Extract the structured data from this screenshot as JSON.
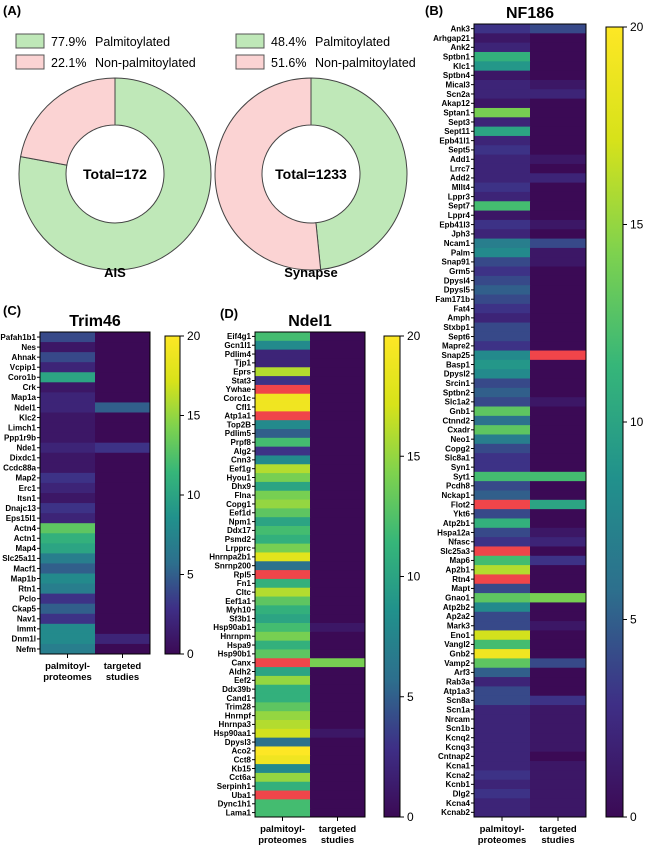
{
  "figure": {
    "panel_labels": {
      "A": "(A)",
      "B": "(B)",
      "C": "(C)",
      "D": "(D)"
    },
    "colors": {
      "palmitoylated": "#bfe8b8",
      "non_palmitoylated": "#fbd3d3",
      "border": "#555555"
    },
    "colorscale": [
      "#3b0a55",
      "#3e2f86",
      "#2d6f8d",
      "#21918c",
      "#36b679",
      "#7ed24e",
      "#d7e21a",
      "#fde725"
    ],
    "highlight_color": "#f0454a"
  },
  "chart_data": [
    {
      "type": "pie",
      "title": "AIS",
      "center_label": "Total=172",
      "categories": [
        "Palmitoylated",
        "Non-palmitoylated"
      ],
      "values": [
        77.9,
        22.1
      ],
      "legend": [
        {
          "pct": "77.9%",
          "label": "Palmitoylated"
        },
        {
          "pct": "22.1%",
          "label": "Non-palmitoylated"
        }
      ]
    },
    {
      "type": "pie",
      "title": "Synapse",
      "center_label": "Total=1233",
      "categories": [
        "Palmitoylated",
        "Non-palmitoylated"
      ],
      "values": [
        48.4,
        51.6
      ],
      "legend": [
        {
          "pct": "48.4%",
          "label": "Palmitoylated"
        },
        {
          "pct": "51.6%",
          "label": "Non-palmitoylated"
        }
      ]
    },
    {
      "type": "heatmap",
      "title": "NF186",
      "columns": [
        "palmitoyl-proteomes",
        "targeted studies"
      ],
      "column_labels": [
        [
          "palmitoyl-",
          "proteomes"
        ],
        [
          "targeted",
          "studies"
        ]
      ],
      "colorbar": {
        "min": 0,
        "max": 20,
        "ticks": [
          "0",
          "5",
          "10",
          "15",
          "20"
        ]
      },
      "rows": [
        "Ank3",
        "Arhgap21",
        "Ank2",
        "Sptbn1",
        "Klc1",
        "Sptbn4",
        "Mical3",
        "Scn2a",
        "Akap12",
        "Sptan1",
        "Sept3",
        "Sept11",
        "Epb41l1",
        "Sept5",
        "Add1",
        "Lrrc7",
        "Add2",
        "Mllt4",
        "Lppr3",
        "Sept7",
        "Lppr4",
        "Epb41l3",
        "Jph3",
        "Ncam1",
        "Palm",
        "Snap91",
        "Grm5",
        "Dpysl4",
        "Dpysl5",
        "Fam171b",
        "Fat4",
        "Amph",
        "Stxbp1",
        "Sept6",
        "Mapre2",
        "Snap25",
        "Basp1",
        "Dpysl2",
        "Srcin1",
        "Sptbn2",
        "Slc1a2",
        "Gnb1",
        "Ctnnd2",
        "Cxadr",
        "Neo1",
        "Copg2",
        "Slc8a1",
        "Syn1",
        "Syt1",
        "Pcdh8",
        "Nckap1",
        "Flot2",
        "Ykt6",
        "Atp2b1",
        "Hspa12a",
        "Nfasc",
        "Slc25a3",
        "Map6",
        "Ap2b1",
        "Rtn4",
        "Mapt",
        "Gnao1",
        "Atp2b2",
        "Ap2a2",
        "Mark3",
        "Eno1",
        "Vangl2",
        "Gnb2",
        "Vamp2",
        "Arf3",
        "Rab3a",
        "Atp1a3",
        "Scn8a",
        "Scn1a",
        "Nrcam",
        "Scn1b",
        "Kcnq2",
        "Kcnq3",
        "Cntnap2",
        "Kcna1",
        "Kcna2",
        "Kcnb1",
        "Dlg2",
        "Kcna4",
        "Kcnab2"
      ],
      "values": [
        [
          3,
          4
        ],
        [
          1,
          0
        ],
        [
          2,
          0
        ],
        [
          11,
          0
        ],
        [
          9,
          0
        ],
        [
          1,
          0
        ],
        [
          2,
          1
        ],
        [
          2,
          2
        ],
        [
          1,
          0
        ],
        [
          14,
          0
        ],
        [
          2,
          0
        ],
        [
          10,
          0
        ],
        [
          2,
          0
        ],
        [
          3,
          0
        ],
        [
          2,
          1
        ],
        [
          2,
          0
        ],
        [
          2,
          2
        ],
        [
          3,
          0
        ],
        [
          2,
          0
        ],
        [
          12,
          0
        ],
        [
          1,
          0
        ],
        [
          3,
          1
        ],
        [
          2,
          0
        ],
        [
          7,
          4
        ],
        [
          8,
          1
        ],
        [
          4,
          1
        ],
        [
          3,
          0
        ],
        [
          4,
          0
        ],
        [
          5,
          0
        ],
        [
          4,
          0
        ],
        [
          3,
          0
        ],
        [
          2,
          0
        ],
        [
          4,
          0
        ],
        [
          4,
          0
        ],
        [
          3,
          0
        ],
        [
          8,
          "max"
        ],
        [
          9,
          0
        ],
        [
          8,
          0
        ],
        [
          4,
          0
        ],
        [
          5,
          0
        ],
        [
          4,
          1
        ],
        [
          13,
          0
        ],
        [
          6,
          0
        ],
        [
          13,
          0
        ],
        [
          7,
          0
        ],
        [
          4,
          0
        ],
        [
          3,
          0
        ],
        [
          3,
          0
        ],
        [
          12,
          12
        ],
        [
          4,
          0
        ],
        [
          5,
          0
        ],
        [
          "max",
          10
        ],
        [
          4,
          0
        ],
        [
          11,
          0
        ],
        [
          4,
          1
        ],
        [
          3,
          2
        ],
        [
          "max",
          0
        ],
        [
          12,
          3
        ],
        [
          16,
          0
        ],
        [
          "max",
          0
        ],
        [
          4,
          0
        ],
        [
          13,
          14
        ],
        [
          8,
          0
        ],
        [
          4,
          0
        ],
        [
          4,
          1
        ],
        [
          17,
          0
        ],
        [
          12,
          0
        ],
        [
          19,
          0
        ],
        [
          13,
          4
        ],
        [
          5,
          0
        ],
        [
          2,
          0
        ],
        [
          4,
          0
        ],
        [
          4,
          3
        ],
        [
          2,
          1
        ],
        [
          2,
          1
        ],
        [
          2,
          1
        ],
        [
          2,
          1
        ],
        [
          2,
          1
        ],
        [
          2,
          0
        ],
        [
          2,
          1
        ],
        [
          3,
          1
        ],
        [
          2,
          1
        ],
        [
          3,
          1
        ],
        [
          2,
          1
        ],
        [
          2,
          1
        ]
      ]
    },
    {
      "type": "heatmap",
      "title": "Trim46",
      "columns": [
        "palmitoyl-proteomes",
        "targeted studies"
      ],
      "column_labels": [
        [
          "palmitoyl-",
          "proteomes"
        ],
        [
          "targeted",
          "studies"
        ]
      ],
      "colorbar": {
        "min": 0,
        "max": 20,
        "ticks": [
          "0",
          "5",
          "10",
          "15",
          "20"
        ]
      },
      "rows": [
        "Pafah1b1",
        "Nes",
        "Ahnak",
        "Vcpip1",
        "Coro1b",
        "Crk",
        "Map1a",
        "Ndel1",
        "Klc2",
        "Limch1",
        "Ppp1r9b",
        "Nde1",
        "Dixdc1",
        "Ccdc88a",
        "Map2",
        "Erc1",
        "Itsn1",
        "Dnajc13",
        "Eps15l1",
        "Actn4",
        "Actn1",
        "Map4",
        "Slc25a11",
        "Macf1",
        "Map1b",
        "Rtn1",
        "Pclo",
        "Ckap5",
        "Nav1",
        "Immt",
        "Dnm1l",
        "Nefm"
      ],
      "values": [
        [
          4,
          0
        ],
        [
          1,
          0
        ],
        [
          4,
          0
        ],
        [
          2,
          0
        ],
        [
          10,
          0
        ],
        [
          1,
          0
        ],
        [
          2,
          0
        ],
        [
          2,
          5
        ],
        [
          1,
          0
        ],
        [
          1,
          0
        ],
        [
          1,
          0
        ],
        [
          2,
          3
        ],
        [
          1,
          0
        ],
        [
          1,
          0
        ],
        [
          3,
          0
        ],
        [
          2,
          0
        ],
        [
          1,
          0
        ],
        [
          3,
          0
        ],
        [
          2,
          0
        ],
        [
          13,
          0
        ],
        [
          11,
          0
        ],
        [
          10,
          0
        ],
        [
          7,
          0
        ],
        [
          5,
          0
        ],
        [
          8,
          0
        ],
        [
          7,
          0
        ],
        [
          3,
          0
        ],
        [
          5,
          0
        ],
        [
          3,
          0
        ],
        [
          8,
          0
        ],
        [
          8,
          2
        ],
        [
          7,
          0
        ]
      ]
    },
    {
      "type": "heatmap",
      "title": "Ndel1",
      "columns": [
        "palmitoyl-proteomes",
        "targeted studies"
      ],
      "column_labels": [
        [
          "palmitoyl-",
          "proteomes"
        ],
        [
          "targeted",
          "studies"
        ]
      ],
      "colorbar": {
        "min": 0,
        "max": 20,
        "ticks": [
          "0",
          "5",
          "10",
          "15",
          "20"
        ]
      },
      "rows": [
        "Eif4g1",
        "Gcn1l1",
        "Pdlim4",
        "Tjp1",
        "Eprs",
        "Stat3",
        "Ywhae",
        "Coro1c",
        "Cfl1",
        "Atp1a1",
        "Top2B",
        "Pdlim5",
        "Prpf8",
        "Alg2",
        "Cnn3",
        "Eef1g",
        "Hyou1",
        "Dhx9",
        "Flna",
        "Copg1",
        "Eef1d",
        "Npm1",
        "Ddx17",
        "Psmd2",
        "Lrpprc",
        "Hnrnpa2b1",
        "Snrnp200",
        "Rpl5",
        "Fn1",
        "Cltc",
        "Eef1a1",
        "Myh10",
        "Sf3b1",
        "Hsp90ab1",
        "Hnrnpm",
        "Hspa9",
        "Hsp90b1",
        "Canx",
        "Aldh2",
        "Eef2",
        "Ddx39b",
        "Cand1",
        "Trim28",
        "Hnrnpf",
        "Hnrnpa3",
        "Hsp90aa1",
        "Dpysl3",
        "Aco2",
        "Cct8",
        "Kb15",
        "Cct6a",
        "Serpinh1",
        "Uba1",
        "Dync1h1",
        "Lama1"
      ],
      "values": [
        [
          12,
          0
        ],
        [
          8,
          0
        ],
        [
          2,
          0
        ],
        [
          2,
          0
        ],
        [
          16,
          0
        ],
        [
          3,
          0
        ],
        [
          "max",
          0
        ],
        [
          19,
          0
        ],
        [
          19,
          0
        ],
        [
          "max",
          0
        ],
        [
          8,
          0
        ],
        [
          5,
          0
        ],
        [
          12,
          0
        ],
        [
          3,
          0
        ],
        [
          8,
          0
        ],
        [
          16,
          0
        ],
        [
          14,
          0
        ],
        [
          10,
          0
        ],
        [
          14,
          0
        ],
        [
          15,
          0
        ],
        [
          13,
          0
        ],
        [
          10,
          0
        ],
        [
          12,
          0
        ],
        [
          11,
          0
        ],
        [
          14,
          0
        ],
        [
          18,
          0
        ],
        [
          6,
          0
        ],
        [
          "max",
          0
        ],
        [
          11,
          0
        ],
        [
          16,
          0
        ],
        [
          13,
          0
        ],
        [
          11,
          0
        ],
        [
          10,
          0
        ],
        [
          12,
          1
        ],
        [
          14,
          0
        ],
        [
          11,
          0
        ],
        [
          13,
          0
        ],
        [
          "max",
          14
        ],
        [
          10,
          0
        ],
        [
          15,
          0
        ],
        [
          11,
          0
        ],
        [
          11,
          0
        ],
        [
          13,
          0
        ],
        [
          15,
          0
        ],
        [
          16,
          0
        ],
        [
          17,
          1
        ],
        [
          6,
          0
        ],
        [
          20,
          0
        ],
        [
          19,
          0
        ],
        [
          8,
          0
        ],
        [
          15,
          0
        ],
        [
          11,
          0
        ],
        [
          "max",
          0
        ],
        [
          12,
          0
        ],
        [
          12,
          0
        ]
      ]
    }
  ]
}
